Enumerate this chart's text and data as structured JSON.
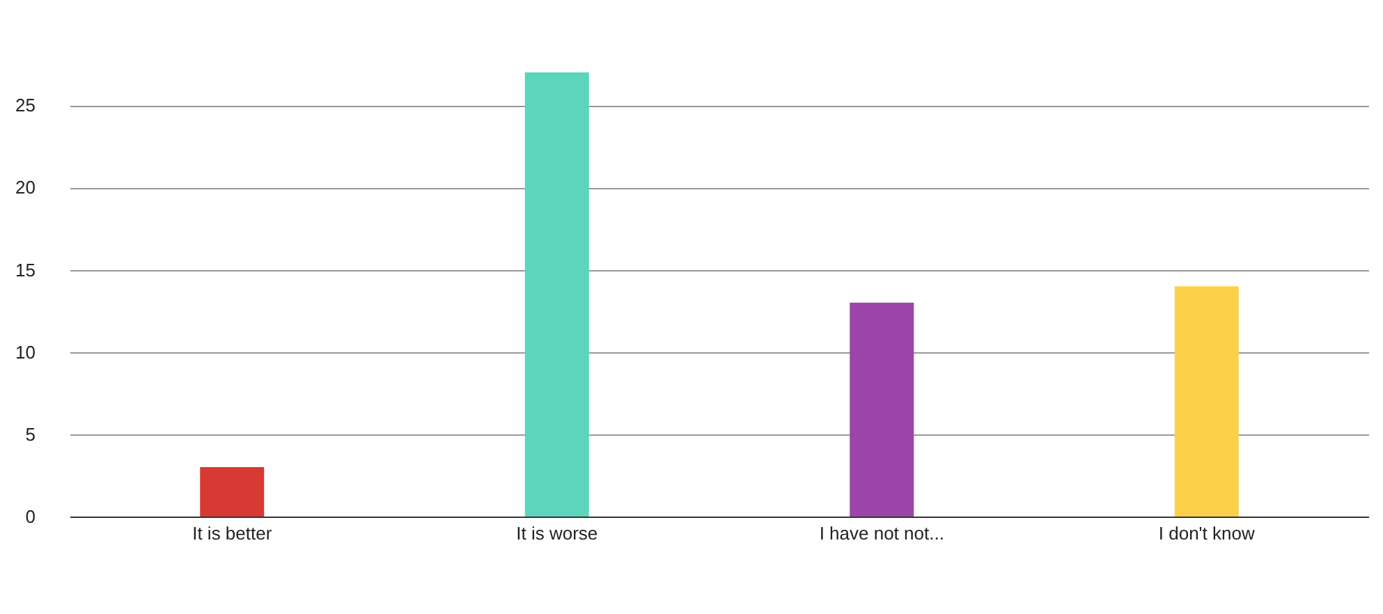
{
  "chart_data": {
    "type": "bar",
    "categories": [
      "It is better",
      "It is worse",
      "I have not not...",
      "I don't know"
    ],
    "values": [
      3,
      27,
      13,
      14
    ],
    "colors": [
      "#d63a33",
      "#5dd4bc",
      "#9b45a8",
      "#fcd04b"
    ],
    "ylim": [
      0,
      27
    ],
    "yticks": [
      0,
      5,
      10,
      15,
      20,
      25
    ],
    "grid": "y"
  }
}
